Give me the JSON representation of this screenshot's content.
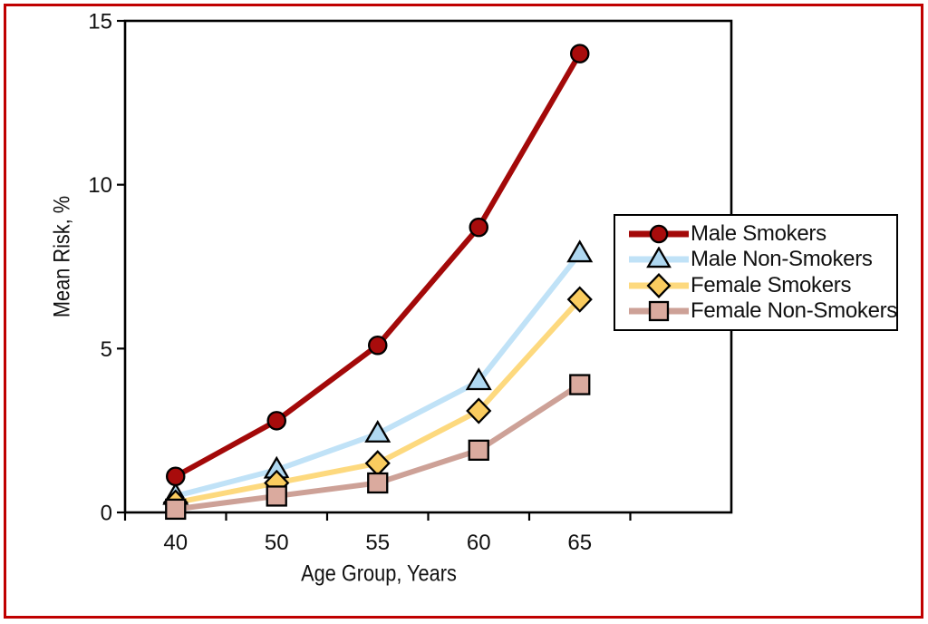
{
  "frame": {
    "border_color": "#C00000",
    "background": "#FFFFFF"
  },
  "chart_data": {
    "type": "line",
    "title": "",
    "xlabel": "Age Group, Years",
    "ylabel": "Mean Risk, %",
    "categories": [
      "40",
      "50",
      "55",
      "60",
      "65"
    ],
    "ylim": [
      0,
      15
    ],
    "yticks": [
      0,
      5,
      10,
      15
    ],
    "grid": false,
    "legend_position": "right-inside",
    "axis_color": "#000000",
    "text_color": "#111111",
    "marker_outline": "#000000",
    "series": [
      {
        "name": "Male Smokers",
        "marker": "circle",
        "line_color": "#A30909",
        "marker_fill": "#A80C0C",
        "values": [
          1.1,
          2.8,
          5.1,
          8.7,
          14.0
        ]
      },
      {
        "name": "Male Non-Smokers",
        "marker": "triangle",
        "line_color": "#C0E2F7",
        "marker_fill": "#AFD8F1",
        "values": [
          0.5,
          1.3,
          2.4,
          4.0,
          7.9
        ]
      },
      {
        "name": "Female Smokers",
        "marker": "diamond",
        "line_color": "#FDD97E",
        "marker_fill": "#FACC5F",
        "values": [
          0.3,
          0.9,
          1.5,
          3.1,
          6.5
        ]
      },
      {
        "name": "Female Non-Smokers",
        "marker": "square",
        "line_color": "#CDA197",
        "marker_fill": "#DAAA9E",
        "values": [
          0.1,
          0.5,
          0.9,
          1.9,
          3.9
        ]
      }
    ]
  }
}
